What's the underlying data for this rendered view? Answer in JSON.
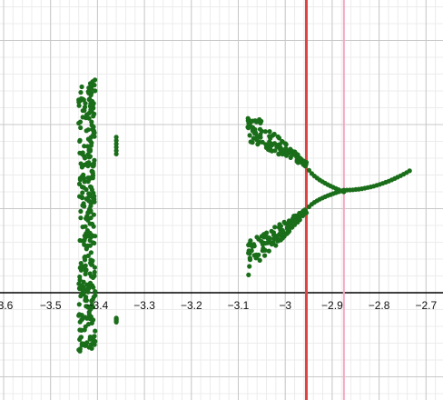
{
  "chart_data": {
    "type": "scatter",
    "title": "",
    "xlabel": "",
    "ylabel": "",
    "xlim": [
      -3.6,
      -2.7
    ],
    "ylim": [
      -1.0,
      3.1
    ],
    "grid": true,
    "x_ticks": [
      -3.6,
      -3.5,
      -3.4,
      -3.3,
      -3.2,
      -3.1,
      -3.0,
      -2.9,
      -2.8,
      -2.7
    ],
    "x_tick_labels": [
      "-3.6",
      "−3.5",
      "−3.4",
      "−3.3",
      "−3.2",
      "−3.1",
      "−3",
      "−2.9",
      "−2.8",
      "−2.7"
    ],
    "colors": {
      "points": "#1a6e1a",
      "vline_primary": "#dd4444",
      "vline_secondary": "#f4a6c0",
      "grid_major": "#c8c8c8",
      "grid_minor": "#ececec",
      "axis": "#000000"
    },
    "vertical_lines": [
      {
        "x": -2.955,
        "color": "#dd4444",
        "width": 3
      },
      {
        "x": -2.875,
        "color": "#f4a6c0",
        "width": 2
      }
    ],
    "clusters": {
      "band_left": {
        "x_min": -3.44,
        "x_max": -3.405,
        "y_min": -0.7,
        "y_max": 2.55
      },
      "strip_mid": {
        "x": -3.36,
        "y_ranges": [
          [
            1.65,
            1.85
          ],
          [
            -0.35,
            -0.3
          ]
        ]
      },
      "triangle": {
        "x_start": -3.08,
        "x_end": -2.955,
        "upper_start": [
          2.2,
          1.8
        ],
        "lower_start": [
          0.2,
          0.6
        ],
        "apex_upper": 1.55,
        "apex_lower": 0.95
      },
      "branches": [
        {
          "from": [
            -2.955,
            1.55
          ],
          "to": [
            -2.875,
            1.2
          ]
        },
        {
          "from": [
            -2.955,
            0.95
          ],
          "to": [
            -2.875,
            1.22
          ]
        }
      ],
      "tail": {
        "from": [
          -2.875,
          1.22
        ],
        "to": [
          -2.735,
          1.45
        ]
      }
    }
  }
}
